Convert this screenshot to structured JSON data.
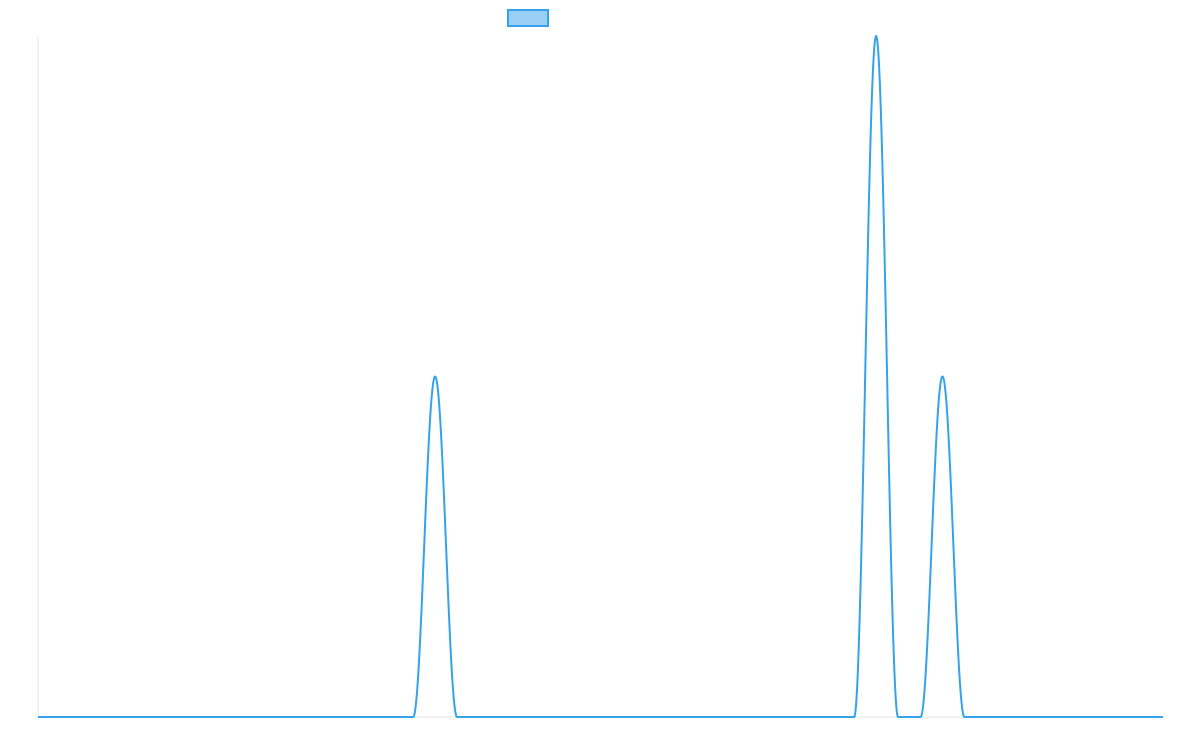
{
  "chart_data": {
    "type": "line",
    "title": "",
    "xlabel": "",
    "ylabel": "",
    "grid": false,
    "legend_position": "top",
    "colors": {
      "line": "#36a2eb",
      "fill": "#9ad0f5",
      "axis": "#e4e4e4"
    },
    "xlim": [
      0,
      1
    ],
    "ylim": [
      0,
      1
    ],
    "series": [
      {
        "label": "",
        "shape": "sum of cosine-squared peaks over a zero baseline",
        "peaks": [
          {
            "center": 0.353,
            "amplitude": 0.5,
            "half_width": 0.0195
          },
          {
            "center": 0.745,
            "amplitude": 1.0,
            "half_width": 0.0195
          },
          {
            "center": 0.804,
            "amplitude": 0.5,
            "half_width": 0.0195
          }
        ]
      }
    ]
  }
}
